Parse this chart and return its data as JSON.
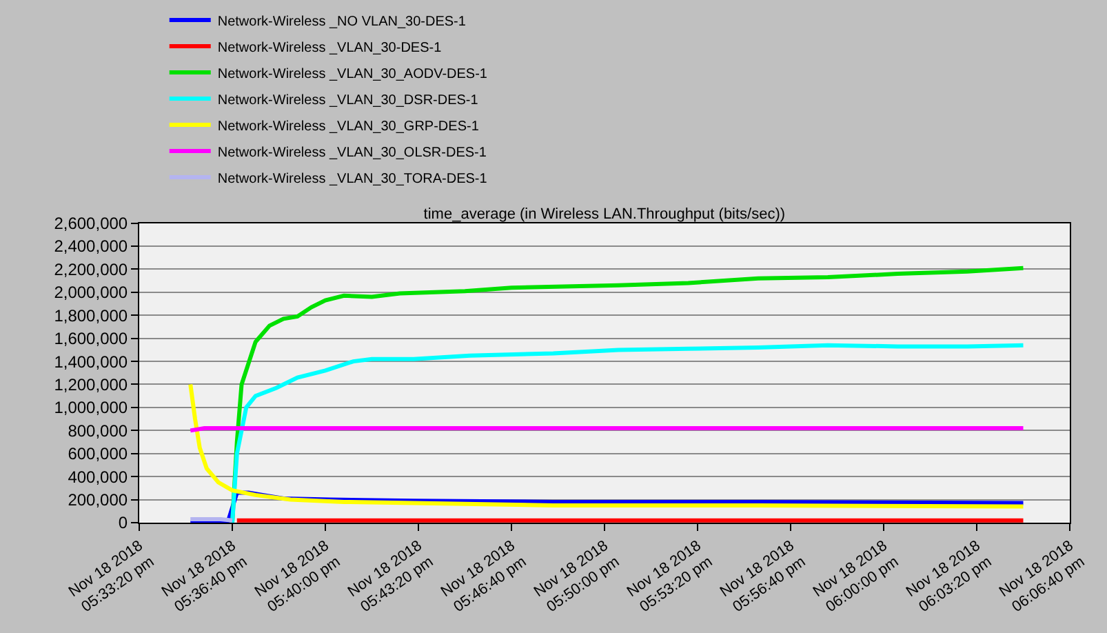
{
  "chart_data": {
    "type": "line",
    "title": "time_average (in Wireless LAN.Throughput (bits/sec))",
    "xlim": [
      "2018-11-18T17:33:20",
      "2018-11-18T18:06:40"
    ],
    "xticks": [
      {
        "value": "2018-11-18T17:33:20",
        "label": "Nov 18 2018\n05:33:20 pm"
      },
      {
        "value": "2018-11-18T17:36:40",
        "label": "Nov 18 2018\n05:36:40 pm"
      },
      {
        "value": "2018-11-18T17:40:00",
        "label": "Nov 18 2018\n05:40:00 pm"
      },
      {
        "value": "2018-11-18T17:43:20",
        "label": "Nov 18 2018\n05:43:20 pm"
      },
      {
        "value": "2018-11-18T17:46:40",
        "label": "Nov 18 2018\n05:46:40 pm"
      },
      {
        "value": "2018-11-18T17:50:00",
        "label": "Nov 18 2018\n05:50:00 pm"
      },
      {
        "value": "2018-11-18T17:53:20",
        "label": "Nov 18 2018\n05:53:20 pm"
      },
      {
        "value": "2018-11-18T17:56:40",
        "label": "Nov 18 2018\n05:56:40 pm"
      },
      {
        "value": "2018-11-18T18:00:00",
        "label": "Nov 18 2018\n06:00:00 pm"
      },
      {
        "value": "2018-11-18T18:03:20",
        "label": "Nov 18 2018\n06:03:20 pm"
      },
      {
        "value": "2018-11-18T18:06:40",
        "label": "Nov 18 2018\n06:06:40 pm"
      }
    ],
    "ylim": [
      0,
      2600000
    ],
    "yticks": [
      {
        "value": 0,
        "label": "0"
      },
      {
        "value": 200000,
        "label": "200,000"
      },
      {
        "value": 400000,
        "label": "400,000"
      },
      {
        "value": 600000,
        "label": "600,000"
      },
      {
        "value": 800000,
        "label": "800,000"
      },
      {
        "value": 1000000,
        "label": "1,000,000"
      },
      {
        "value": 1200000,
        "label": "1,200,000"
      },
      {
        "value": 1400000,
        "label": "1,400,000"
      },
      {
        "value": 1600000,
        "label": "1,600,000"
      },
      {
        "value": 1800000,
        "label": "1,800,000"
      },
      {
        "value": 2000000,
        "label": "2,000,000"
      },
      {
        "value": 2200000,
        "label": "2,200,000"
      },
      {
        "value": 2400000,
        "label": "2,400,000"
      },
      {
        "value": 2600000,
        "label": "2,600,000"
      }
    ],
    "grid": "y",
    "legend": "top",
    "marker": "none",
    "line_style": "solid",
    "series": [
      {
        "name": "Network-Wireless _NO VLAN_30-DES-1",
        "color": "#0000ff",
        "x": [
          "2018-11-18T17:35:10",
          "2018-11-18T17:36:30",
          "2018-11-18T17:36:50",
          "2018-11-18T17:37:15",
          "2018-11-18T17:37:45",
          "2018-11-18T17:38:30",
          "2018-11-18T17:40:10",
          "2018-11-18T17:43:10",
          "2018-11-18T17:48:10",
          "2018-11-18T17:55:30",
          "2018-11-18T18:05:00"
        ],
        "values": [
          0,
          0,
          260000,
          260000,
          240000,
          210000,
          200000,
          190000,
          180000,
          180000,
          170000
        ]
      },
      {
        "name": "Network-Wireless _VLAN_30-DES-1",
        "color": "#ff0000",
        "x": [
          "2018-11-18T17:36:50",
          "2018-11-18T18:05:00"
        ],
        "values": [
          20000,
          20000
        ]
      },
      {
        "name": "Network-Wireless _VLAN_30_AODV-DES-1",
        "color": "#00e000",
        "x": [
          "2018-11-18T17:36:40",
          "2018-11-18T17:36:50",
          "2018-11-18T17:37:00",
          "2018-11-18T17:37:30",
          "2018-11-18T17:38:00",
          "2018-11-18T17:38:30",
          "2018-11-18T17:39:00",
          "2018-11-18T17:39:30",
          "2018-11-18T17:40:00",
          "2018-11-18T17:40:40",
          "2018-11-18T17:41:40",
          "2018-11-18T17:42:40",
          "2018-11-18T17:45:00",
          "2018-11-18T17:46:40",
          "2018-11-18T17:50:30",
          "2018-11-18T17:53:00",
          "2018-11-18T17:55:30",
          "2018-11-18T17:58:00",
          "2018-11-18T18:00:30",
          "2018-11-18T18:03:00",
          "2018-11-18T18:05:00"
        ],
        "values": [
          0,
          700000,
          1200000,
          1570000,
          1710000,
          1770000,
          1790000,
          1870000,
          1930000,
          1970000,
          1960000,
          1990000,
          2010000,
          2040000,
          2060000,
          2080000,
          2120000,
          2130000,
          2160000,
          2180000,
          2210000
        ]
      },
      {
        "name": "Network-Wireless _VLAN_30_DSR-DES-1",
        "color": "#00ffff",
        "x": [
          "2018-11-18T17:36:40",
          "2018-11-18T17:36:50",
          "2018-11-18T17:37:10",
          "2018-11-18T17:37:30",
          "2018-11-18T17:38:15",
          "2018-11-18T17:39:00",
          "2018-11-18T17:40:00",
          "2018-11-18T17:41:00",
          "2018-11-18T17:41:40",
          "2018-11-18T17:43:10",
          "2018-11-18T17:45:10",
          "2018-11-18T17:48:10",
          "2018-11-18T17:50:30",
          "2018-11-18T17:53:00",
          "2018-11-18T17:55:30",
          "2018-11-18T17:58:00",
          "2018-11-18T18:00:30",
          "2018-11-18T18:03:00",
          "2018-11-18T18:05:00"
        ],
        "values": [
          0,
          600000,
          1000000,
          1100000,
          1170000,
          1260000,
          1320000,
          1400000,
          1420000,
          1420000,
          1450000,
          1470000,
          1500000,
          1510000,
          1520000,
          1540000,
          1530000,
          1530000,
          1540000
        ]
      },
      {
        "name": "Network-Wireless _VLAN_30_GRP-DES-1",
        "color": "#ffff00",
        "x": [
          "2018-11-18T17:35:10",
          "2018-11-18T17:35:20",
          "2018-11-18T17:35:30",
          "2018-11-18T17:35:45",
          "2018-11-18T17:36:10",
          "2018-11-18T17:36:40",
          "2018-11-18T17:37:30",
          "2018-11-18T17:38:45",
          "2018-11-18T17:40:40",
          "2018-11-18T17:43:10",
          "2018-11-18T17:48:10",
          "2018-11-18T17:55:30",
          "2018-11-18T18:05:00"
        ],
        "values": [
          1200000,
          900000,
          650000,
          470000,
          350000,
          280000,
          240000,
          200000,
          180000,
          170000,
          150000,
          150000,
          140000
        ]
      },
      {
        "name": "Network-Wireless _VLAN_30_OLSR-DES-1",
        "color": "#ff00ff",
        "x": [
          "2018-11-18T17:35:10",
          "2018-11-18T17:35:40",
          "2018-11-18T18:05:00"
        ],
        "values": [
          800000,
          820000,
          820000
        ]
      },
      {
        "name": "Network-Wireless _VLAN_30_TORA-DES-1",
        "color": "#b4b4f0",
        "x": [
          "2018-11-18T17:35:10",
          "2018-11-18T17:36:15",
          "2018-11-18T17:36:40"
        ],
        "values": [
          30000,
          30000,
          20000
        ]
      }
    ]
  }
}
